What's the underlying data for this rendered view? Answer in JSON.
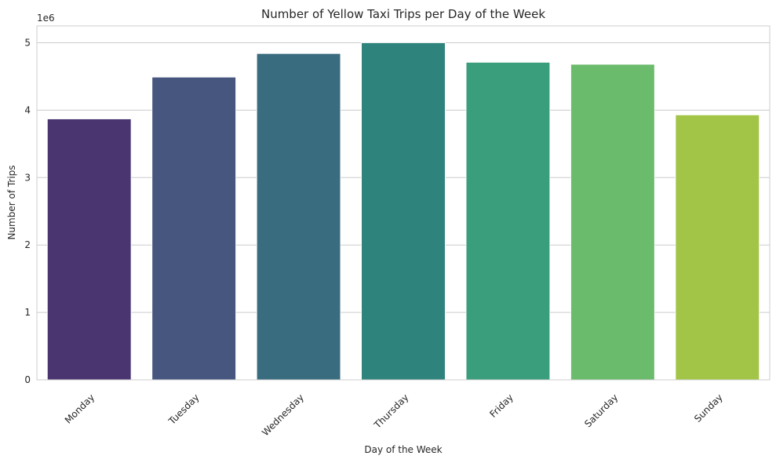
{
  "chart_data": {
    "type": "bar",
    "title": "Number of Yellow Taxi Trips per Day of the Week",
    "xlabel": "Day of the Week",
    "ylabel": "Number of Trips",
    "y_offset_label": "1e6",
    "categories": [
      "Monday",
      "Tuesday",
      "Wednesday",
      "Thursday",
      "Friday",
      "Saturday",
      "Sunday"
    ],
    "values": [
      3870000,
      4490000,
      4840000,
      5000000,
      4710000,
      4680000,
      3930000
    ],
    "colors": [
      "#4a3571",
      "#46567f",
      "#3a6c7f",
      "#2e837c",
      "#3a9e7c",
      "#6abb6b",
      "#a3c547"
    ],
    "ylim": [
      0,
      5250000
    ],
    "yticks": [
      0,
      1000000,
      2000000,
      3000000,
      4000000,
      5000000
    ],
    "ytick_labels": [
      "0",
      "1",
      "2",
      "3",
      "4",
      "5"
    ],
    "grid": "horizontal",
    "xtick_rotation": 45
  }
}
